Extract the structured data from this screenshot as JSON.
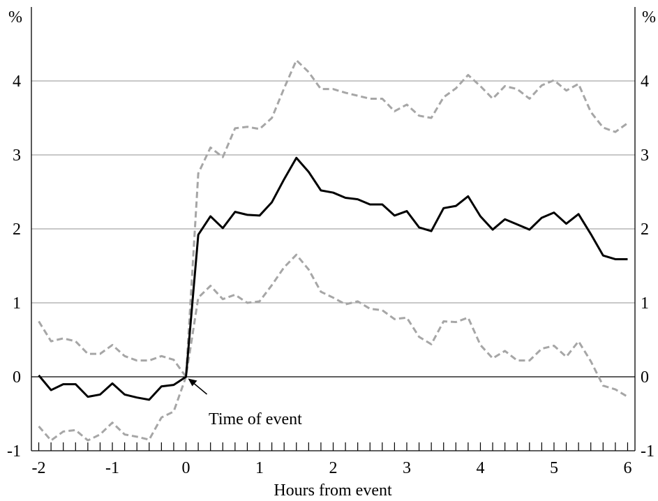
{
  "chart_data": {
    "type": "line",
    "title": "",
    "xlabel": "Hours from event",
    "ylabel_left": "%",
    "ylabel_right": "%",
    "xlim": [
      -2.1,
      6.1
    ],
    "ylim": [
      -1,
      5
    ],
    "x_ticks": [
      -2,
      -1,
      0,
      1,
      2,
      3,
      4,
      5,
      6
    ],
    "y_ticks": [
      -1,
      0,
      1,
      2,
      3,
      4
    ],
    "grid": "horizontal",
    "legend": "none",
    "annotation": {
      "text": "Time of event",
      "x": 0,
      "y": 0
    },
    "series": [
      {
        "style": "solid",
        "color": "#000000",
        "x": [
          -2,
          -1.833,
          -1.667,
          -1.5,
          -1.333,
          -1.167,
          -1,
          -0.833,
          -0.667,
          -0.5,
          -0.333,
          -0.167,
          0,
          0.167,
          0.333,
          0.5,
          0.667,
          0.833,
          1,
          1.167,
          1.333,
          1.5,
          1.667,
          1.833,
          2,
          2.167,
          2.333,
          2.5,
          2.667,
          2.833,
          3,
          3.167,
          3.333,
          3.5,
          3.667,
          3.833,
          4,
          4.167,
          4.333,
          4.5,
          4.667,
          4.833,
          5,
          5.167,
          5.333,
          5.5,
          5.667,
          5.833,
          6
        ],
        "values": [
          0.02,
          -0.18,
          -0.1,
          -0.1,
          -0.27,
          -0.24,
          -0.09,
          -0.24,
          -0.28,
          -0.31,
          -0.13,
          -0.11,
          0,
          1.92,
          2.17,
          2.01,
          2.23,
          2.19,
          2.18,
          2.36,
          2.67,
          2.96,
          2.77,
          2.52,
          2.49,
          2.42,
          2.4,
          2.33,
          2.33,
          2.18,
          2.24,
          2.02,
          1.97,
          2.28,
          2.31,
          2.44,
          2.17,
          1.99,
          2.13,
          2.06,
          1.99,
          2.15,
          2.22,
          2.07,
          2.2,
          1.93,
          1.64,
          1.59,
          1.59
        ]
      },
      {
        "style": "dashed",
        "color": "#a6a6a6",
        "x": [
          -2,
          -1.833,
          -1.667,
          -1.5,
          -1.333,
          -1.167,
          -1,
          -0.833,
          -0.667,
          -0.5,
          -0.333,
          -0.167,
          0,
          0.167,
          0.333,
          0.5,
          0.667,
          0.833,
          1,
          1.167,
          1.333,
          1.5,
          1.667,
          1.833,
          2,
          2.167,
          2.333,
          2.5,
          2.667,
          2.833,
          3,
          3.167,
          3.333,
          3.5,
          3.667,
          3.833,
          4,
          4.167,
          4.333,
          4.5,
          4.667,
          4.833,
          5,
          5.167,
          5.333,
          5.5,
          5.667,
          5.833,
          6
        ],
        "values": [
          0.75,
          0.48,
          0.52,
          0.48,
          0.31,
          0.31,
          0.43,
          0.28,
          0.22,
          0.22,
          0.28,
          0.23,
          0,
          2.75,
          3.1,
          2.97,
          3.36,
          3.38,
          3.35,
          3.5,
          3.9,
          4.28,
          4.12,
          3.89,
          3.89,
          3.84,
          3.8,
          3.76,
          3.76,
          3.59,
          3.68,
          3.53,
          3.5,
          3.78,
          3.9,
          4.08,
          3.93,
          3.76,
          3.93,
          3.89,
          3.76,
          3.94,
          4.01,
          3.87,
          3.96,
          3.58,
          3.37,
          3.31,
          3.43
        ]
      },
      {
        "style": "dashed",
        "color": "#a6a6a6",
        "x": [
          -2,
          -1.833,
          -1.667,
          -1.5,
          -1.333,
          -1.167,
          -1,
          -0.833,
          -0.667,
          -0.5,
          -0.333,
          -0.167,
          0,
          0.167,
          0.333,
          0.5,
          0.667,
          0.833,
          1,
          1.167,
          1.333,
          1.5,
          1.667,
          1.833,
          2,
          2.167,
          2.333,
          2.5,
          2.667,
          2.833,
          3,
          3.167,
          3.333,
          3.5,
          3.667,
          3.833,
          4,
          4.167,
          4.333,
          4.5,
          4.667,
          4.833,
          5,
          5.167,
          5.333,
          5.5,
          5.667,
          5.833,
          6
        ],
        "values": [
          -0.67,
          -0.86,
          -0.74,
          -0.72,
          -0.86,
          -0.78,
          -0.62,
          -0.78,
          -0.81,
          -0.85,
          -0.55,
          -0.47,
          0,
          1.07,
          1.23,
          1.05,
          1.11,
          1.0,
          1.02,
          1.24,
          1.48,
          1.65,
          1.45,
          1.15,
          1.07,
          0.98,
          1.02,
          0.92,
          0.9,
          0.78,
          0.8,
          0.54,
          0.44,
          0.75,
          0.74,
          0.8,
          0.43,
          0.25,
          0.35,
          0.22,
          0.22,
          0.38,
          0.42,
          0.27,
          0.48,
          0.21,
          -0.12,
          -0.17,
          -0.27
        ]
      }
    ]
  }
}
